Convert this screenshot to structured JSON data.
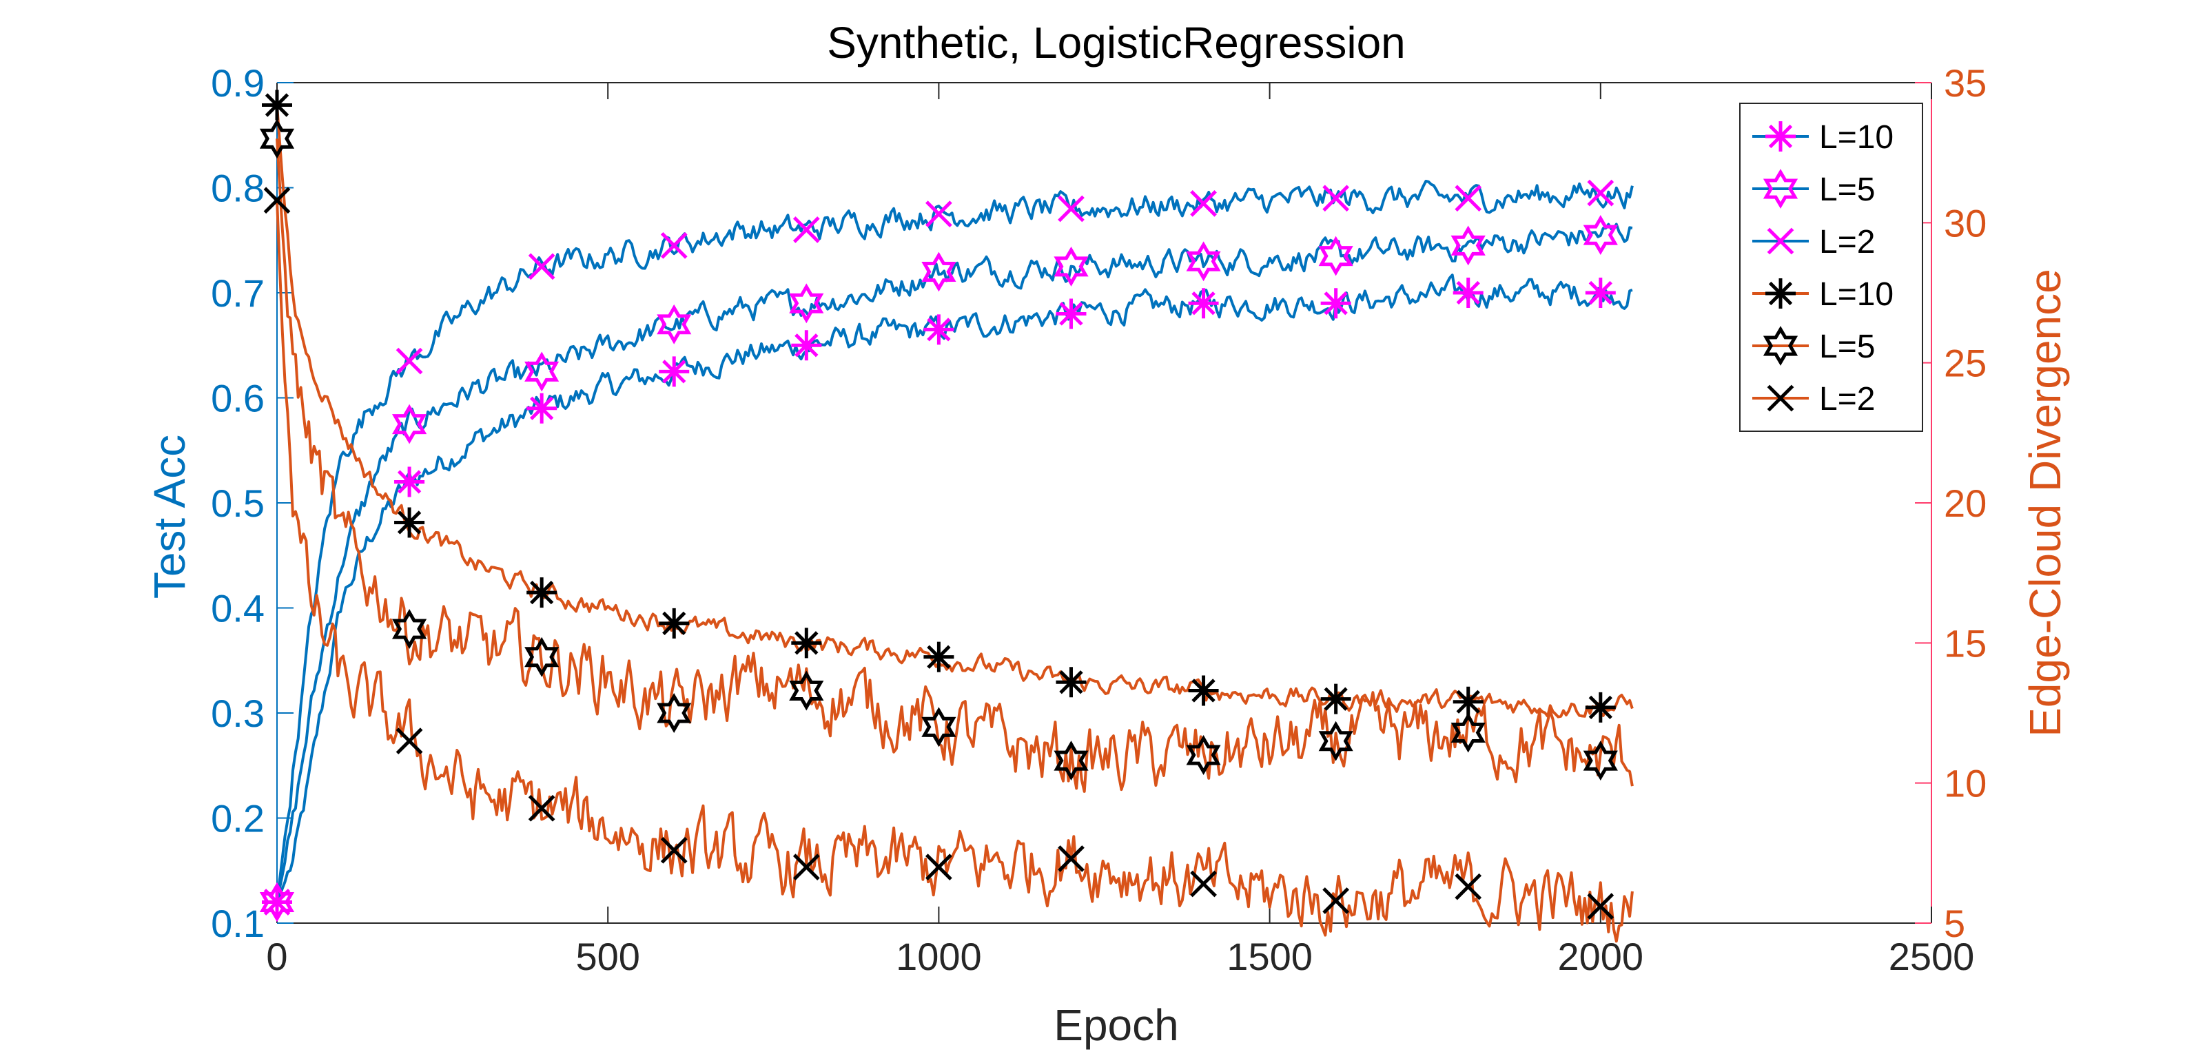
{
  "chart_data": {
    "type": "line",
    "title": "Synthetic, LogisticRegression",
    "xlabel": "Epoch",
    "ylabel_left": "Test Acc",
    "ylabel_right": "Edge-Cloud Divergence",
    "xlim": [
      0,
      2500
    ],
    "ylim_left": [
      0.1,
      0.9
    ],
    "ylim_right": [
      5,
      35
    ],
    "x_ticks": [
      0,
      500,
      1000,
      1500,
      2000,
      2500
    ],
    "x_tick_labels": [
      "0",
      "500",
      "1000",
      "1500",
      "2000",
      "2500"
    ],
    "y_left_ticks": [
      0.1,
      0.2,
      0.3,
      0.4,
      0.5,
      0.6,
      0.7,
      0.8,
      0.9
    ],
    "y_left_tick_labels": [
      "0.1",
      "0.2",
      "0.3",
      "0.4",
      "0.5",
      "0.6",
      "0.7",
      "0.8",
      "0.9"
    ],
    "y_right_ticks": [
      5,
      10,
      15,
      20,
      25,
      30,
      35
    ],
    "y_right_tick_labels": [
      "5",
      "10",
      "15",
      "20",
      "25",
      "30",
      "35"
    ],
    "grid": false,
    "legend_placement": "top-right",
    "colors": {
      "left_axis": "#0072BD",
      "right_axis": "#D95319",
      "right_tick_marks": "#FF3B6B",
      "acc_line": "#0072BD",
      "div_line": "#D95319",
      "acc_marker": "#FF00FF",
      "div_marker": "#000000"
    },
    "series": [
      {
        "name": "L=10",
        "axis": "left",
        "marker": "asterisk",
        "x": [
          0,
          25,
          50,
          75,
          100,
          150,
          200,
          300,
          400,
          500,
          600,
          700,
          800,
          900,
          1000,
          1200,
          1400,
          1600,
          1800,
          2000,
          2050
        ],
        "y": [
          0.12,
          0.16,
          0.24,
          0.33,
          0.41,
          0.48,
          0.52,
          0.56,
          0.59,
          0.61,
          0.625,
          0.64,
          0.65,
          0.66,
          0.665,
          0.68,
          0.69,
          0.69,
          0.7,
          0.7,
          0.7
        ]
      },
      {
        "name": "L=5",
        "axis": "left",
        "marker": "hexagram",
        "x": [
          0,
          25,
          50,
          75,
          100,
          150,
          200,
          300,
          400,
          500,
          600,
          700,
          800,
          900,
          1000,
          1200,
          1400,
          1600,
          1800,
          2000,
          2050
        ],
        "y": [
          0.12,
          0.2,
          0.3,
          0.38,
          0.45,
          0.53,
          0.575,
          0.61,
          0.625,
          0.65,
          0.67,
          0.685,
          0.69,
          0.7,
          0.72,
          0.725,
          0.73,
          0.735,
          0.745,
          0.755,
          0.76
        ]
      },
      {
        "name": "L=2",
        "axis": "left",
        "marker": "x",
        "x": [
          0,
          25,
          50,
          75,
          100,
          150,
          200,
          300,
          400,
          500,
          600,
          700,
          800,
          900,
          1000,
          1200,
          1400,
          1600,
          1800,
          2000,
          2050
        ],
        "y": [
          0.12,
          0.25,
          0.38,
          0.48,
          0.55,
          0.6,
          0.635,
          0.69,
          0.725,
          0.735,
          0.745,
          0.76,
          0.76,
          0.77,
          0.775,
          0.78,
          0.785,
          0.79,
          0.79,
          0.795,
          0.795
        ]
      },
      {
        "name": "L=10",
        "axis": "right",
        "marker": "asterisk",
        "x": [
          0,
          10,
          25,
          50,
          100,
          150,
          200,
          300,
          400,
          500,
          600,
          700,
          800,
          900,
          1000,
          1200,
          1400,
          1600,
          1800,
          2000,
          2050
        ],
        "y": [
          34.2,
          31.0,
          27.0,
          25.0,
          22.5,
          20.5,
          19.3,
          17.8,
          16.8,
          16.2,
          15.7,
          15.3,
          15.0,
          14.8,
          14.5,
          13.6,
          13.3,
          13.0,
          12.9,
          12.7,
          12.8
        ]
      },
      {
        "name": "L=5",
        "axis": "right",
        "marker": "hexagram",
        "x": [
          0,
          10,
          25,
          50,
          100,
          150,
          200,
          300,
          400,
          500,
          600,
          700,
          800,
          900,
          1000,
          1200,
          1400,
          1600,
          1800,
          2000,
          2050
        ],
        "y": [
          33.0,
          29.0,
          25.0,
          22.0,
          18.5,
          17.0,
          15.5,
          14.8,
          14.5,
          13.8,
          12.5,
          13.5,
          13.3,
          12.8,
          12.0,
          10.8,
          11.0,
          11.5,
          11.8,
          10.8,
          11.0
        ]
      },
      {
        "name": "L=2",
        "axis": "right",
        "marker": "x",
        "x": [
          0,
          10,
          25,
          50,
          100,
          150,
          200,
          300,
          400,
          500,
          600,
          700,
          800,
          900,
          1000,
          1200,
          1400,
          1600,
          1800,
          2000,
          2050
        ],
        "y": [
          30.8,
          25.0,
          20.0,
          16.5,
          13.5,
          12.5,
          11.5,
          9.5,
          9.1,
          8.5,
          7.6,
          7.3,
          7.0,
          7.2,
          7.0,
          7.3,
          6.4,
          5.8,
          6.3,
          5.6,
          5.5
        ]
      }
    ]
  }
}
